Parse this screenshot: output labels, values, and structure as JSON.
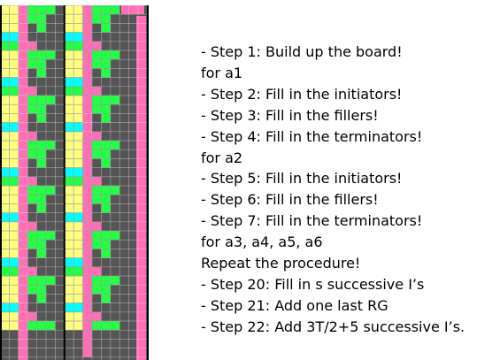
{
  "board": {
    "colors": {
      "empty": "#555555",
      "grid": "#eeeeee",
      "initiator": "#ffff80",
      "filler": "#22ff44",
      "terminator": "#00ffff",
      "delimiter": "#ff6fb5",
      "border": "#000000"
    }
  },
  "steps": [
    "- Step 1: Build up the board!",
    "for a1",
    "- Step 2: Fill in the initiators!",
    "- Step 3: Fill in the fillers!",
    "- Step 4: Fill in the terminators!",
    "for a2",
    "- Step 5: Fill in the initiators!",
    "- Step 6: Fill in the fillers!",
    "- Step 7: Fill in the terminators!",
    "for a3, a4, a5, a6",
    "Repeat the procedure!",
    "- Step 20: Fill in s successive I’s",
    "- Step 21: Add one last RG",
    "- Step 22: Add 3T/2+5 successive I’s."
  ]
}
